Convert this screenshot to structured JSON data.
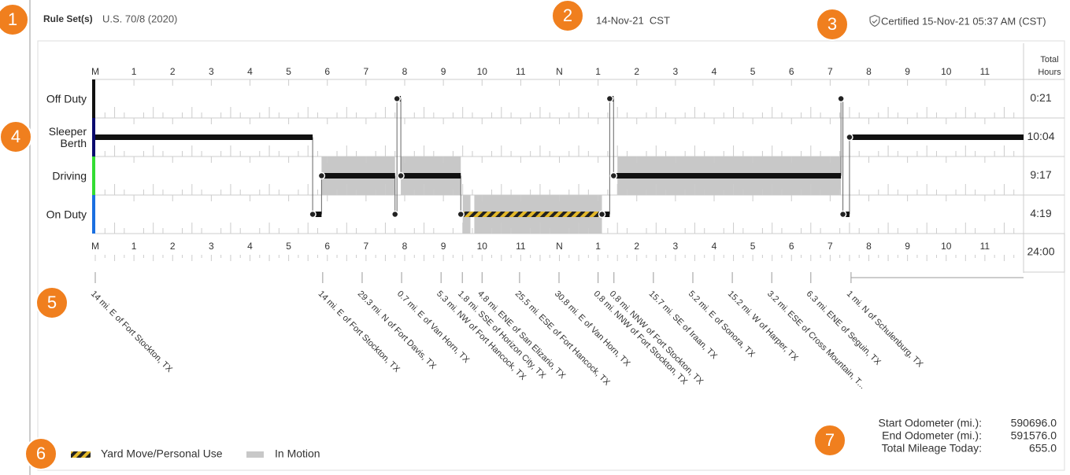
{
  "header": {
    "rule_set_label": "Rule Set(s)",
    "rule_set": "U.S. 70/8 (2020)",
    "date": "14-Nov-21  CST",
    "certified": "Certified 15-Nov-21 05:37 AM (CST)"
  },
  "callouts": [
    "1",
    "2",
    "3",
    "4",
    "5",
    "6",
    "7"
  ],
  "log": {
    "hour_labels": [
      "M",
      "1",
      "2",
      "3",
      "4",
      "5",
      "6",
      "7",
      "8",
      "9",
      "10",
      "11",
      "N",
      "1",
      "2",
      "3",
      "4",
      "5",
      "6",
      "7",
      "8",
      "9",
      "10",
      "11"
    ],
    "total_header": [
      "Total",
      "Hours"
    ],
    "grand_total": "24:00",
    "rows": [
      {
        "label": "Off Duty",
        "color": "#111111",
        "total": "0:21",
        "segments": [
          {
            "start": 7.8,
            "end": 7.9
          },
          {
            "start": 13.3,
            "end": 13.4
          },
          {
            "start": 19.28,
            "end": 19.33
          }
        ],
        "in_motion": []
      },
      {
        "label": "Sleeper Berth",
        "color": "#0a0a6e",
        "total": "10:04",
        "segments": [
          {
            "start": 0,
            "end": 5.62
          },
          {
            "start": 19.5,
            "end": 24
          }
        ],
        "in_motion": []
      },
      {
        "label": "Driving",
        "color": "#33dd33",
        "total": "9:17",
        "segments": [
          {
            "start": 5.85,
            "end": 7.75
          },
          {
            "start": 7.9,
            "end": 9.45
          },
          {
            "start": 13.4,
            "end": 19.28
          }
        ],
        "in_motion": [
          [
            5.85,
            7.75
          ],
          [
            7.9,
            9.45
          ],
          [
            13.5,
            19.28
          ]
        ]
      },
      {
        "label": "On Duty",
        "color": "#1a6fe0",
        "total": "4:19",
        "segments": [
          {
            "start": 5.62,
            "end": 5.85
          },
          {
            "start": 7.75,
            "end": 7.8
          },
          {
            "start": 9.45,
            "end": 13.1,
            "yard_move": true
          },
          {
            "start": 13.1,
            "end": 13.3
          },
          {
            "start": 19.33,
            "end": 19.5
          }
        ],
        "in_motion": [
          [
            9.5,
            9.7
          ],
          [
            9.8,
            13.1
          ]
        ]
      }
    ],
    "locations": [
      {
        "label": "14 mi. E of Fort Stockton, TX",
        "hour": 0
      },
      {
        "label": "14 mi. E of Fort Stockton, TX",
        "hour": 5.88
      },
      {
        "label": "29.3 mi. N of Fort Davis, TX",
        "hour": 6.9
      },
      {
        "label": "0.7 mi. E of Van Horn, TX",
        "hour": 7.92
      },
      {
        "label": "5.3 mi. NW of Fort Hancock, TX",
        "hour": 8.94
      },
      {
        "label": "1.8 mi. SSE of Horizon City, TX",
        "hour": 9.49
      },
      {
        "label": "4.8 mi. ENE of San Elizario, TX",
        "hour": 10.0
      },
      {
        "label": "25.5 mi. ESE of Fort Hancock, TX",
        "hour": 10.97
      },
      {
        "label": "30.8 mi. E of Van Horn, TX",
        "hour": 11.99
      },
      {
        "label": "0.8 mi. NNW of Fort Stockton, TX",
        "hour": 13.0
      },
      {
        "label": "0.8 mi. NNW of Fort Stockton, TX",
        "hour": 13.41
      },
      {
        "label": "15.7 mi. SE of Iraan, TX",
        "hour": 14.43
      },
      {
        "label": "5.2 mi. E of Sonora, TX",
        "hour": 15.45
      },
      {
        "label": "15.2 mi. W of Harper, TX",
        "hour": 16.47
      },
      {
        "label": "3.2 mi. ESE of Cross Mountain, T...",
        "hour": 17.49
      },
      {
        "label": "6.3 mi. ENE of Seguin, TX",
        "hour": 18.5
      },
      {
        "label": "1 mi. N of Schulenburg, TX",
        "hour": 19.54
      }
    ]
  },
  "legend": {
    "yard_move": "Yard Move/Personal Use",
    "in_motion": "In Motion"
  },
  "odometer": {
    "rows": [
      {
        "label": "Start Odometer (mi.):",
        "value": "590696.0"
      },
      {
        "label": "End Odometer (mi.):",
        "value": "591576.0"
      },
      {
        "label": "Total Mileage Today:",
        "value": "655.0"
      }
    ]
  }
}
